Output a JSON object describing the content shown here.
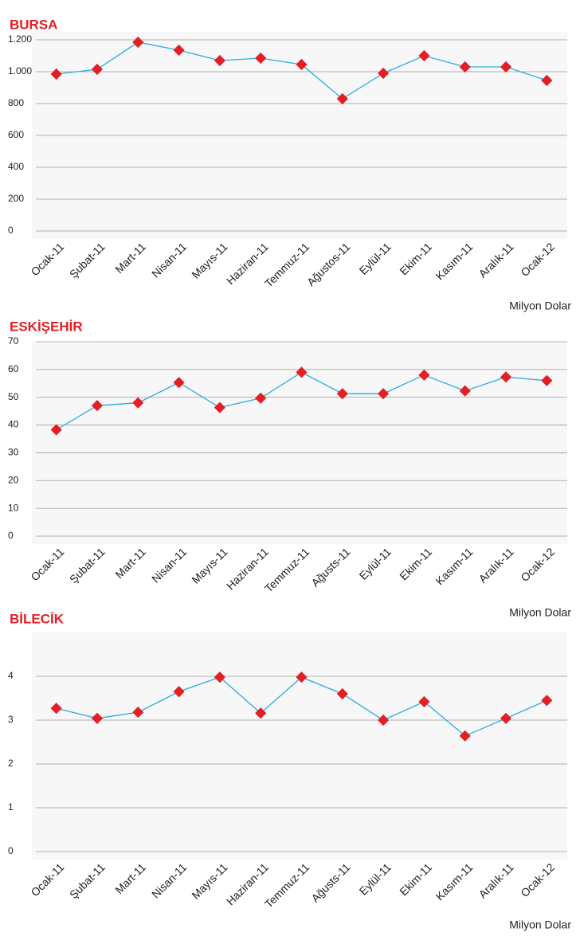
{
  "chart_data": [
    {
      "type": "line",
      "title": "BURSA",
      "y_unit": "Milyon Dolar",
      "categories": [
        "Ocak-11",
        "Şubat-11",
        "Mart-11",
        "Nisan-11",
        "Mayıs-11",
        "Haziran-11",
        "Temmuz-11",
        "Ağustos-11",
        "Eylül-11",
        "Ekim-11",
        "Kasım-11",
        "Aralık-11",
        "Ocak-12"
      ],
      "series": [
        {
          "name": "BURSA",
          "color": "#29abe2",
          "marker_color": "#e31e24",
          "values": [
            985,
            1015,
            1185,
            1135,
            1070,
            1085,
            1045,
            830,
            990,
            1100,
            1030,
            1030,
            945
          ]
        }
      ],
      "ylim": [
        0,
        1250
      ],
      "yticks": [
        0,
        200,
        400,
        600,
        800,
        {
          "value": 1000,
          "label": "1.000"
        },
        {
          "value": 1200,
          "label": "1.200"
        }
      ],
      "grid": true
    },
    {
      "type": "line",
      "title": "ESKİŞEHİR",
      "y_unit": "Milyon Dolar",
      "categories": [
        "Ocak-11",
        "Şubat-11",
        "Mart-11",
        "Nisan-11",
        "Mayıs-11",
        "Haziran-11",
        "Temmuz-11",
        "Ağusts-11",
        "Eylül-11",
        "Ekim-11",
        "Kasım-11",
        "Aralık-11",
        "Ocak-12"
      ],
      "series": [
        {
          "name": "ESKİŞEHİR",
          "color": "#29abe2",
          "marker_color": "#e31e24",
          "values": [
            38.3,
            47,
            48,
            55.3,
            46.3,
            49.7,
            59,
            51.3,
            51.3,
            58,
            52.3,
            57.3,
            56
          ]
        }
      ],
      "ylim": [
        0,
        70
      ],
      "yticks": [
        0,
        10,
        20,
        30,
        40,
        50,
        60,
        70
      ],
      "grid": true
    },
    {
      "type": "line",
      "title": "BİLECİK",
      "y_unit": "Milyon Dolar",
      "categories": [
        "Ocak-11",
        "Şubat-11",
        "Mart-11",
        "Nisan-11",
        "Mayıs-11",
        "Haziran-11",
        "Temmuz-11",
        "Ağusts-11",
        "Eylül-11",
        "Ekim-11",
        "Kasım-11",
        "Aralık-11",
        "Ocak-12"
      ],
      "series": [
        {
          "name": "BİLECİK",
          "color": "#29abe2",
          "marker_color": "#e31e24",
          "values": [
            3.27,
            3.04,
            3.18,
            3.65,
            3.98,
            3.16,
            3.98,
            3.6,
            3.0,
            3.42,
            2.64,
            3.04,
            3.45
          ]
        }
      ],
      "ylim": [
        0,
        5
      ],
      "yticks": [
        0,
        1,
        2,
        3,
        4
      ],
      "grid": true
    }
  ]
}
